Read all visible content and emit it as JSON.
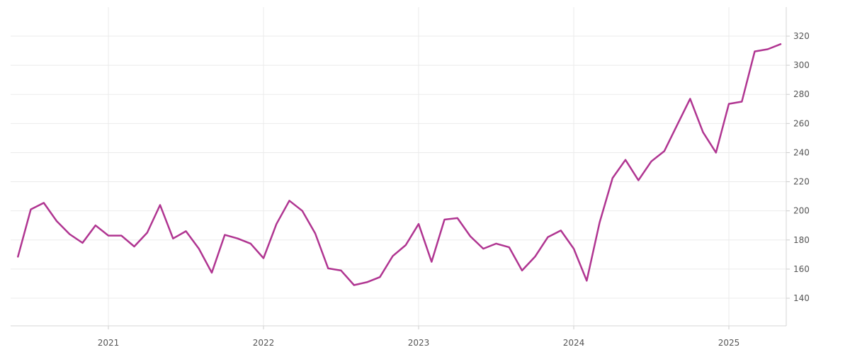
{
  "chart_data": {
    "type": "line",
    "title": "",
    "xlabel": "",
    "ylabel": "",
    "x_ticks": [
      "2021",
      "2022",
      "2023",
      "2024",
      "2025"
    ],
    "y_ticks": [
      140,
      160,
      180,
      200,
      220,
      240,
      260,
      280,
      300,
      320
    ],
    "ylim": [
      120,
      330
    ],
    "grid": true,
    "y_axis_position": "right",
    "series_color": "#b03591",
    "series": [
      {
        "x": [
          "2020-06",
          "2020-07",
          "2020-08",
          "2020-09",
          "2020-10",
          "2020-11",
          "2020-12",
          "2021-01",
          "2021-02",
          "2021-03",
          "2021-04",
          "2021-05",
          "2021-06",
          "2021-07",
          "2021-08",
          "2021-09",
          "2021-10",
          "2021-11",
          "2021-12",
          "2022-01",
          "2022-02",
          "2022-03",
          "2022-04",
          "2022-05",
          "2022-06",
          "2022-07",
          "2022-08",
          "2022-09",
          "2022-10",
          "2022-11",
          "2022-12",
          "2023-01",
          "2023-02",
          "2023-03",
          "2023-04",
          "2023-05",
          "2023-06",
          "2023-07",
          "2023-08",
          "2023-09",
          "2023-10",
          "2023-11",
          "2023-12",
          "2024-01",
          "2024-02",
          "2024-03",
          "2024-04",
          "2024-05",
          "2024-06",
          "2024-07",
          "2024-08",
          "2024-09",
          "2024-10",
          "2024-11",
          "2024-12",
          "2025-01",
          "2025-02",
          "2025-03",
          "2025-04",
          "2025-05"
        ],
        "values": [
          168.5,
          201,
          205.5,
          193,
          184,
          178,
          190,
          183,
          183,
          175.5,
          185,
          204,
          181,
          186,
          174,
          157.5,
          183.5,
          181,
          177.5,
          167.5,
          191,
          207,
          200,
          184.5,
          160.5,
          159,
          149,
          151,
          154.5,
          169,
          176.5,
          191,
          165,
          194,
          195,
          182.5,
          174,
          177.5,
          175,
          159,
          168.5,
          182,
          186.5,
          174,
          152,
          192,
          222.5,
          235,
          221,
          234,
          241,
          259,
          277,
          254,
          240,
          273.5,
          275,
          309.5,
          311,
          314.5
        ]
      }
    ]
  }
}
